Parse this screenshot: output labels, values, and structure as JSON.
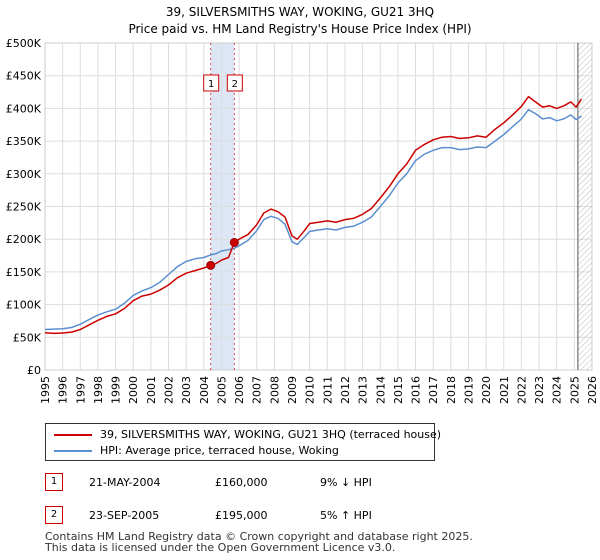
{
  "chart_data": {
    "type": "line",
    "title": "39, SILVERSMITHS WAY, WOKING, GU21 3HQ",
    "subtitle": "Price paid vs. HM Land Registry's House Price Index (HPI)",
    "xlim": [
      1995,
      2026
    ],
    "ylim": [
      0,
      500000
    ],
    "x_ticks": [
      "1995",
      "1996",
      "1997",
      "1998",
      "1999",
      "2000",
      "2001",
      "2002",
      "2003",
      "2004",
      "2005",
      "2006",
      "2007",
      "2008",
      "2009",
      "2010",
      "2011",
      "2012",
      "2013",
      "2014",
      "2015",
      "2016",
      "2017",
      "2018",
      "2019",
      "2020",
      "2021",
      "2022",
      "2023",
      "2024",
      "2025",
      "2026"
    ],
    "y_ticks": [
      {
        "value": 0,
        "label": "£0"
      },
      {
        "value": 50000,
        "label": "£50K"
      },
      {
        "value": 100000,
        "label": "£100K"
      },
      {
        "value": 150000,
        "label": "£150K"
      },
      {
        "value": 200000,
        "label": "£200K"
      },
      {
        "value": 250000,
        "label": "£250K"
      },
      {
        "value": 300000,
        "label": "£300K"
      },
      {
        "value": 350000,
        "label": "£350K"
      },
      {
        "value": 400000,
        "label": "£400K"
      },
      {
        "value": 450000,
        "label": "£450K"
      },
      {
        "value": 500000,
        "label": "£500K"
      }
    ],
    "grid": true,
    "legend_position": "bottom",
    "series": [
      {
        "name": "39, SILVERSMITHS WAY, WOKING, GU21 3HQ (terraced house)",
        "color": "#cc0000",
        "points": [
          [
            1995.0,
            57000
          ],
          [
            1995.5,
            56000
          ],
          [
            1996.0,
            56500
          ],
          [
            1996.5,
            58000
          ],
          [
            1997.0,
            62000
          ],
          [
            1997.5,
            69000
          ],
          [
            1998.0,
            76000
          ],
          [
            1998.5,
            82000
          ],
          [
            1999.0,
            86000
          ],
          [
            1999.5,
            94000
          ],
          [
            2000.0,
            106000
          ],
          [
            2000.5,
            113000
          ],
          [
            2001.0,
            116000
          ],
          [
            2001.5,
            122000
          ],
          [
            2002.0,
            130000
          ],
          [
            2002.5,
            141000
          ],
          [
            2003.0,
            148000
          ],
          [
            2003.5,
            152000
          ],
          [
            2004.0,
            156000
          ],
          [
            2004.39,
            160000
          ],
          [
            2004.7,
            163000
          ],
          [
            2005.0,
            168000
          ],
          [
            2005.4,
            172000
          ],
          [
            2005.73,
            195000
          ],
          [
            2006.0,
            200000
          ],
          [
            2006.5,
            207000
          ],
          [
            2007.0,
            222000
          ],
          [
            2007.4,
            240000
          ],
          [
            2007.8,
            246000
          ],
          [
            2008.2,
            242000
          ],
          [
            2008.6,
            234000
          ],
          [
            2009.0,
            205000
          ],
          [
            2009.3,
            200000
          ],
          [
            2009.7,
            213000
          ],
          [
            2010.0,
            224000
          ],
          [
            2010.5,
            226000
          ],
          [
            2011.0,
            228000
          ],
          [
            2011.5,
            226000
          ],
          [
            2012.0,
            230000
          ],
          [
            2012.5,
            232000
          ],
          [
            2013.0,
            238000
          ],
          [
            2013.5,
            247000
          ],
          [
            2014.0,
            263000
          ],
          [
            2014.5,
            280000
          ],
          [
            2015.0,
            300000
          ],
          [
            2015.5,
            315000
          ],
          [
            2016.0,
            336000
          ],
          [
            2016.5,
            345000
          ],
          [
            2017.0,
            352000
          ],
          [
            2017.5,
            356000
          ],
          [
            2018.0,
            357000
          ],
          [
            2018.5,
            354000
          ],
          [
            2019.0,
            355000
          ],
          [
            2019.5,
            358000
          ],
          [
            2020.0,
            356000
          ],
          [
            2020.5,
            368000
          ],
          [
            2021.0,
            378000
          ],
          [
            2021.5,
            390000
          ],
          [
            2022.0,
            403000
          ],
          [
            2022.4,
            418000
          ],
          [
            2022.8,
            410000
          ],
          [
            2023.2,
            402000
          ],
          [
            2023.6,
            404000
          ],
          [
            2024.0,
            400000
          ],
          [
            2024.4,
            404000
          ],
          [
            2024.8,
            410000
          ],
          [
            2025.1,
            402000
          ],
          [
            2025.4,
            414000
          ]
        ]
      },
      {
        "name": "HPI: Average price, terraced house, Woking",
        "color": "#5b8fd0",
        "points": [
          [
            1995.0,
            62000
          ],
          [
            1995.5,
            62500
          ],
          [
            1996.0,
            63000
          ],
          [
            1996.5,
            65000
          ],
          [
            1997.0,
            70000
          ],
          [
            1997.5,
            77000
          ],
          [
            1998.0,
            84000
          ],
          [
            1998.5,
            89000
          ],
          [
            1999.0,
            93000
          ],
          [
            1999.5,
            102000
          ],
          [
            2000.0,
            114000
          ],
          [
            2000.5,
            121000
          ],
          [
            2001.0,
            126000
          ],
          [
            2001.5,
            134000
          ],
          [
            2002.0,
            146000
          ],
          [
            2002.5,
            158000
          ],
          [
            2003.0,
            166000
          ],
          [
            2003.5,
            170000
          ],
          [
            2004.0,
            172000
          ],
          [
            2004.39,
            176000
          ],
          [
            2004.7,
            178000
          ],
          [
            2005.0,
            182000
          ],
          [
            2005.4,
            184000
          ],
          [
            2005.73,
            186000
          ],
          [
            2006.0,
            190000
          ],
          [
            2006.5,
            198000
          ],
          [
            2007.0,
            213000
          ],
          [
            2007.4,
            230000
          ],
          [
            2007.8,
            235000
          ],
          [
            2008.2,
            232000
          ],
          [
            2008.6,
            223000
          ],
          [
            2009.0,
            196000
          ],
          [
            2009.3,
            192000
          ],
          [
            2009.7,
            203000
          ],
          [
            2010.0,
            212000
          ],
          [
            2010.5,
            214000
          ],
          [
            2011.0,
            216000
          ],
          [
            2011.5,
            214000
          ],
          [
            2012.0,
            218000
          ],
          [
            2012.5,
            220000
          ],
          [
            2013.0,
            226000
          ],
          [
            2013.5,
            234000
          ],
          [
            2014.0,
            250000
          ],
          [
            2014.5,
            266000
          ],
          [
            2015.0,
            286000
          ],
          [
            2015.5,
            300000
          ],
          [
            2016.0,
            320000
          ],
          [
            2016.5,
            330000
          ],
          [
            2017.0,
            336000
          ],
          [
            2017.5,
            340000
          ],
          [
            2018.0,
            340000
          ],
          [
            2018.5,
            337000
          ],
          [
            2019.0,
            338000
          ],
          [
            2019.5,
            341000
          ],
          [
            2020.0,
            340000
          ],
          [
            2020.5,
            350000
          ],
          [
            2021.0,
            360000
          ],
          [
            2021.5,
            372000
          ],
          [
            2022.0,
            384000
          ],
          [
            2022.4,
            398000
          ],
          [
            2022.8,
            392000
          ],
          [
            2023.2,
            384000
          ],
          [
            2023.6,
            386000
          ],
          [
            2024.0,
            381000
          ],
          [
            2024.4,
            384000
          ],
          [
            2024.8,
            390000
          ],
          [
            2025.1,
            383000
          ],
          [
            2025.4,
            388000
          ]
        ]
      }
    ],
    "sales": [
      {
        "id": "1",
        "x": 2004.39,
        "price": 160000,
        "date": "21-MAY-2004",
        "price_label": "£160,000",
        "hpi": "9% ↓ HPI"
      },
      {
        "id": "2",
        "x": 2005.73,
        "price": 195000,
        "date": "23-SEP-2005",
        "price_label": "£195,000",
        "hpi": "5% ↑ HPI"
      }
    ],
    "highlight_band": [
      2004.39,
      2005.73
    ],
    "forecast_from": 2025.2
  },
  "legend": {
    "property_label": "39, SILVERSMITHS WAY, WOKING, GU21 3HQ (terraced house)",
    "hpi_label": "HPI: Average price, terraced house, Woking"
  },
  "footer": {
    "line1": "Contains HM Land Registry data © Crown copyright and database right 2025.",
    "line2": "This data is licensed under the Open Government Licence v3.0."
  },
  "colors": {
    "property": "#cc0000",
    "hpi": "#5b8fd0",
    "band": "#dde6f5",
    "grid": "#dddddd"
  }
}
